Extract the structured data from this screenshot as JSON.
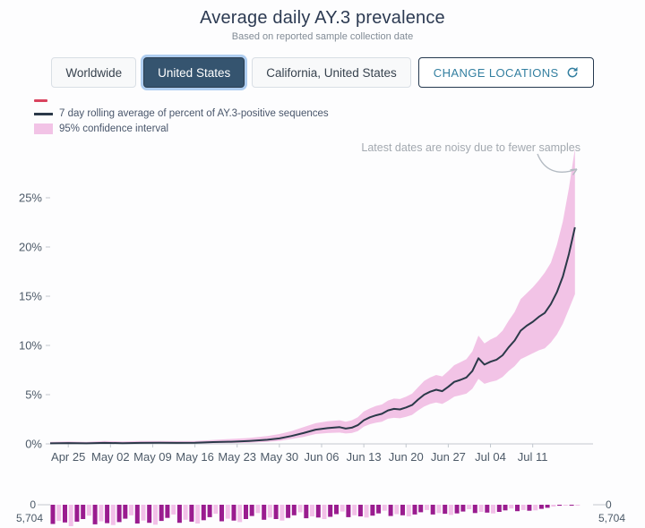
{
  "header": {
    "title": "Average daily AY.3 prevalence",
    "subtitle": "Based on reported sample collection date"
  },
  "toolbar": {
    "locations": [
      {
        "label": "Worldwide",
        "selected": false
      },
      {
        "label": "United States",
        "selected": true
      },
      {
        "label": "California, United States",
        "selected": false
      }
    ],
    "change_locations_label": "CHANGE LOCATIONS"
  },
  "legend": {
    "line_label": "7 day rolling average of percent of AY.3-positive sequences",
    "band_label": "95% confidence interval"
  },
  "annotation": "Latest dates are noisy due to fewer samples",
  "counts_axis": {
    "zero_label": "0",
    "max_label": "5,704"
  },
  "colors": {
    "line": "#2b3949",
    "band": "#f2c3e6",
    "bar_dark": "#9a1c8f",
    "bar_light": "#f2c0e8",
    "axis": "#c2c8cf",
    "selected_button": "#35546f",
    "red_dash": "#d9435f",
    "change_locations_text": "#337fa0"
  },
  "chart_data": {
    "type": "line",
    "title": "Average daily AY.3 prevalence",
    "ylabel": "percent of AY.3-positive sequences",
    "ylim": [
      0,
      30
    ],
    "yticks": [
      {
        "value": 0,
        "label": "0%"
      },
      {
        "value": 5,
        "label": "5%"
      },
      {
        "value": 10,
        "label": "10%"
      },
      {
        "value": 15,
        "label": "15%"
      },
      {
        "value": 20,
        "label": "20%"
      },
      {
        "value": 25,
        "label": "25%"
      }
    ],
    "x_domain_days": [
      0,
      90
    ],
    "xticks": [
      {
        "day": 3,
        "label": "Apr 25"
      },
      {
        "day": 10,
        "label": "May 02"
      },
      {
        "day": 17,
        "label": "May 09"
      },
      {
        "day": 24,
        "label": "May 16"
      },
      {
        "day": 31,
        "label": "May 23"
      },
      {
        "day": 38,
        "label": "May 30"
      },
      {
        "day": 45,
        "label": "Jun 06"
      },
      {
        "day": 52,
        "label": "Jun 13"
      },
      {
        "day": 59,
        "label": "Jun 20"
      },
      {
        "day": 66,
        "label": "Jun 27"
      },
      {
        "day": 73,
        "label": "Jul 04"
      },
      {
        "day": 80,
        "label": "Jul 11"
      }
    ],
    "point_format": [
      "day_offset_from_Apr_22",
      "rolling_avg_pct",
      "ci_lower_pct",
      "ci_upper_pct"
    ],
    "series": [
      {
        "name": "7 day rolling average of percent of AY.3-positive sequences",
        "band_name": "95% confidence interval",
        "points": [
          [
            0,
            0.05,
            0,
            0.2
          ],
          [
            3,
            0.08,
            0,
            0.25
          ],
          [
            6,
            0.05,
            0,
            0.2
          ],
          [
            9,
            0.1,
            0.01,
            0.3
          ],
          [
            12,
            0.07,
            0,
            0.25
          ],
          [
            15,
            0.1,
            0.02,
            0.3
          ],
          [
            18,
            0.12,
            0.03,
            0.3
          ],
          [
            21,
            0.1,
            0.02,
            0.28
          ],
          [
            24,
            0.12,
            0.03,
            0.3
          ],
          [
            27,
            0.18,
            0.06,
            0.4
          ],
          [
            30,
            0.22,
            0.08,
            0.5
          ],
          [
            33,
            0.3,
            0.12,
            0.6
          ],
          [
            36,
            0.42,
            0.2,
            0.8
          ],
          [
            38,
            0.55,
            0.3,
            1.0
          ],
          [
            40,
            0.8,
            0.5,
            1.3
          ],
          [
            42,
            1.1,
            0.7,
            1.7
          ],
          [
            44,
            1.45,
            1.0,
            2.1
          ],
          [
            46,
            1.6,
            1.1,
            2.3
          ],
          [
            48,
            1.7,
            1.15,
            2.4
          ],
          [
            49,
            1.55,
            1.05,
            2.25
          ],
          [
            50,
            1.65,
            1.1,
            2.4
          ],
          [
            51,
            1.9,
            1.3,
            2.7
          ],
          [
            52,
            2.4,
            1.75,
            3.3
          ],
          [
            53,
            2.7,
            2.0,
            3.6
          ],
          [
            54,
            2.9,
            2.15,
            3.85
          ],
          [
            55,
            3.05,
            2.25,
            4.0
          ],
          [
            56,
            3.4,
            2.55,
            4.4
          ],
          [
            57,
            3.55,
            2.65,
            4.6
          ],
          [
            58,
            3.5,
            2.6,
            4.55
          ],
          [
            59,
            3.7,
            2.75,
            4.8
          ],
          [
            60,
            3.95,
            2.95,
            5.1
          ],
          [
            61,
            4.5,
            3.4,
            5.75
          ],
          [
            62,
            5.0,
            3.8,
            6.4
          ],
          [
            63,
            5.3,
            4.05,
            6.75
          ],
          [
            64,
            5.5,
            4.2,
            7.0
          ],
          [
            65,
            5.35,
            4.05,
            6.85
          ],
          [
            66,
            5.8,
            4.4,
            7.4
          ],
          [
            67,
            6.3,
            4.8,
            8.0
          ],
          [
            68,
            6.5,
            4.95,
            8.3
          ],
          [
            69,
            6.75,
            5.1,
            8.6
          ],
          [
            70,
            7.4,
            5.6,
            9.4
          ],
          [
            71,
            8.7,
            6.6,
            11.0
          ],
          [
            72,
            8.05,
            6.1,
            10.2
          ],
          [
            73,
            8.35,
            6.3,
            10.6
          ],
          [
            74,
            8.55,
            6.45,
            10.9
          ],
          [
            75,
            9.0,
            6.8,
            11.5
          ],
          [
            76,
            9.8,
            7.4,
            12.5
          ],
          [
            77,
            10.5,
            7.9,
            13.4
          ],
          [
            78,
            11.5,
            8.6,
            14.7
          ],
          [
            79,
            12.0,
            8.9,
            15.3
          ],
          [
            80,
            12.4,
            9.2,
            15.9
          ],
          [
            81,
            12.9,
            9.5,
            16.6
          ],
          [
            82,
            13.3,
            9.7,
            17.4
          ],
          [
            83,
            14.2,
            10.3,
            18.4
          ],
          [
            84,
            15.4,
            11.1,
            20.2
          ],
          [
            85,
            17.0,
            12.2,
            22.6
          ],
          [
            86,
            19.3,
            13.7,
            26.0
          ],
          [
            87,
            22.0,
            15.2,
            30.0
          ]
        ]
      }
    ],
    "sample_counts": {
      "max": 5704,
      "values": [
        5100,
        4300,
        4700,
        5704,
        4500,
        3800,
        2900,
        5200,
        4400,
        4900,
        5400,
        4600,
        3700,
        2800,
        5000,
        4200,
        4800,
        5300,
        4300,
        3500,
        2600,
        4800,
        4000,
        4500,
        5000,
        4100,
        3300,
        2400,
        4400,
        3700,
        4200,
        4600,
        3800,
        3000,
        2200,
        4000,
        3400,
        3800,
        4200,
        3500,
        2800,
        2000,
        3600,
        3100,
        3400,
        3800,
        3200,
        2500,
        1800,
        3300,
        2800,
        3100,
        3400,
        2900,
        2300,
        1600,
        3000,
        2500,
        2800,
        3100,
        2600,
        2000,
        1400,
        2600,
        2200,
        2400,
        2700,
        2300,
        1800,
        1200,
        2200,
        1900,
        2100,
        2300,
        1900,
        1500,
        1000,
        1700,
        1400,
        1600,
        1500,
        1100,
        800,
        500,
        250,
        120,
        60,
        30
      ]
    }
  }
}
